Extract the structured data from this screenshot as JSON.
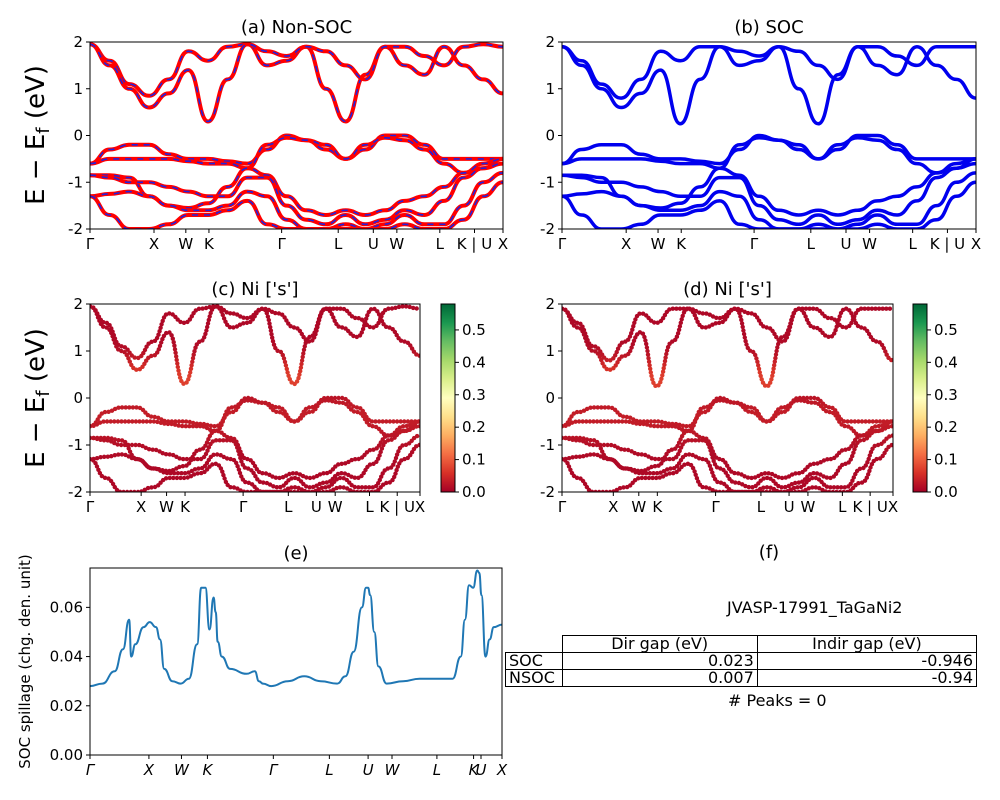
{
  "chart_data": [
    {
      "panel": "a",
      "type": "line",
      "title": "(a) Non-SOC",
      "ylabel": "E − E_f (eV)",
      "ylim": [
        -2,
        2
      ],
      "yticks": [
        2,
        1,
        0,
        -1,
        -2
      ],
      "kpath_labels": [
        "Γ",
        "X",
        "W",
        "K",
        "Γ",
        "L",
        "U",
        "W",
        "L",
        "K | U",
        "X"
      ],
      "kpath_positions": [
        0,
        0.155,
        0.232,
        0.288,
        0.464,
        0.601,
        0.686,
        0.743,
        0.847,
        0.931,
        1.0
      ],
      "series": [
        {
          "values": [
            1.95,
            1.6,
            1.1,
            0.85,
            1.2,
            1.8,
            1.6,
            1.9,
            1.95,
            1.5,
            1.6,
            1.9,
            1.0,
            0.3,
            1.3,
            1.9,
            1.5,
            1.3,
            1.9,
            1.5,
            1.2,
            0.9
          ]
        },
        {
          "values": [
            1.95,
            1.5,
            1.0,
            0.6,
            0.9,
            1.4,
            0.3,
            1.2,
            1.95,
            1.8,
            1.7,
            1.9,
            1.8,
            1.5,
            1.2,
            1.9,
            1.9,
            1.7,
            1.5,
            1.9,
            1.95,
            1.9
          ]
        },
        {
          "values": [
            -0.6,
            -0.3,
            -0.2,
            -0.2,
            -0.4,
            -0.5,
            -0.5,
            -0.55,
            -0.6,
            -0.3,
            0.0,
            -0.1,
            -0.3,
            -0.5,
            -0.3,
            0.0,
            0.0,
            -0.2,
            -0.5,
            -0.5,
            -0.5,
            -0.5
          ]
        },
        {
          "values": [
            -0.6,
            -0.5,
            -0.5,
            -0.5,
            -0.5,
            -0.55,
            -0.6,
            -0.6,
            -0.7,
            -0.2,
            -0.05,
            -0.1,
            -0.2,
            -0.5,
            -0.2,
            -0.05,
            -0.1,
            -0.3,
            -0.6,
            -0.8,
            -0.7,
            -0.5
          ]
        },
        {
          "values": [
            -0.85,
            -0.85,
            -0.9,
            -1.3,
            -1.5,
            -1.55,
            -1.45,
            -1.1,
            -0.7,
            -0.85,
            -1.3,
            -1.6,
            -1.7,
            -1.6,
            -1.7,
            -1.6,
            -1.4,
            -1.3,
            -1.1,
            -0.8,
            -0.6,
            -0.5
          ]
        },
        {
          "values": [
            -0.85,
            -0.9,
            -1.0,
            -1.0,
            -1.1,
            -1.2,
            -1.3,
            -1.3,
            -0.9,
            -0.9,
            -1.5,
            -1.8,
            -1.9,
            -1.7,
            -1.9,
            -1.8,
            -1.6,
            -1.7,
            -1.4,
            -0.9,
            -0.7,
            -0.6
          ]
        },
        {
          "values": [
            -1.3,
            -1.25,
            -1.2,
            -1.3,
            -1.5,
            -1.6,
            -1.6,
            -1.5,
            -1.2,
            -1.3,
            -1.8,
            -2.0,
            -2.0,
            -1.9,
            -2.0,
            -1.9,
            -1.7,
            -1.9,
            -1.9,
            -1.5,
            -1.0,
            -0.8
          ]
        },
        {
          "values": [
            -1.3,
            -1.7,
            -2.0,
            -2.0,
            -1.9,
            -1.7,
            -1.7,
            -1.6,
            -1.4,
            -1.9,
            -2.0,
            -2.0,
            -2.0,
            -2.0,
            -2.0,
            -2.0,
            -1.9,
            -2.0,
            -2.0,
            -1.8,
            -1.3,
            -1.0
          ]
        }
      ]
    },
    {
      "panel": "b",
      "type": "line",
      "title": "(b) SOC",
      "ylim": [
        -2,
        2
      ],
      "yticks": [
        2,
        1,
        0,
        -1,
        -2
      ],
      "kpath_labels": [
        "Γ",
        "X",
        "W",
        "K",
        "Γ",
        "L",
        "U",
        "W",
        "L",
        "K | U",
        "X"
      ],
      "kpath_positions": [
        0,
        0.155,
        0.232,
        0.288,
        0.464,
        0.601,
        0.686,
        0.743,
        0.847,
        0.931,
        1.0
      ],
      "series": [
        {
          "values": [
            1.9,
            1.6,
            1.1,
            0.8,
            1.2,
            1.8,
            1.6,
            1.9,
            1.9,
            1.5,
            1.6,
            1.9,
            1.0,
            0.25,
            1.3,
            1.9,
            1.5,
            1.3,
            1.9,
            1.5,
            1.2,
            0.8
          ]
        },
        {
          "values": [
            1.9,
            1.5,
            1.0,
            0.6,
            0.9,
            1.4,
            0.25,
            1.2,
            1.9,
            1.8,
            1.7,
            1.9,
            1.8,
            1.5,
            1.2,
            1.9,
            1.9,
            1.7,
            1.5,
            1.9,
            1.9,
            1.9
          ]
        },
        {
          "values": [
            -0.6,
            -0.3,
            -0.2,
            -0.2,
            -0.4,
            -0.5,
            -0.5,
            -0.55,
            -0.6,
            -0.3,
            0.0,
            -0.1,
            -0.3,
            -0.5,
            -0.3,
            0.0,
            0.0,
            -0.2,
            -0.5,
            -0.5,
            -0.5,
            -0.5
          ]
        },
        {
          "values": [
            -0.6,
            -0.5,
            -0.5,
            -0.5,
            -0.5,
            -0.55,
            -0.6,
            -0.6,
            -0.7,
            -0.2,
            -0.05,
            -0.1,
            -0.2,
            -0.5,
            -0.2,
            -0.05,
            -0.1,
            -0.3,
            -0.6,
            -0.8,
            -0.7,
            -0.5
          ]
        },
        {
          "values": [
            -0.85,
            -0.85,
            -0.9,
            -1.3,
            -1.5,
            -1.55,
            -1.45,
            -1.1,
            -0.7,
            -0.85,
            -1.3,
            -1.6,
            -1.7,
            -1.6,
            -1.7,
            -1.6,
            -1.4,
            -1.3,
            -1.1,
            -0.8,
            -0.6,
            -0.5
          ]
        },
        {
          "values": [
            -0.85,
            -0.9,
            -1.0,
            -1.0,
            -1.1,
            -1.2,
            -1.3,
            -1.3,
            -0.9,
            -0.9,
            -1.5,
            -1.8,
            -1.9,
            -1.7,
            -1.9,
            -1.8,
            -1.6,
            -1.7,
            -1.4,
            -0.9,
            -0.7,
            -0.6
          ]
        },
        {
          "values": [
            -1.3,
            -1.25,
            -1.2,
            -1.3,
            -1.5,
            -1.6,
            -1.6,
            -1.5,
            -1.2,
            -1.3,
            -1.8,
            -2.0,
            -2.0,
            -1.9,
            -2.0,
            -1.9,
            -1.7,
            -1.9,
            -1.9,
            -1.5,
            -1.0,
            -0.8
          ]
        },
        {
          "values": [
            -1.3,
            -1.7,
            -2.0,
            -2.0,
            -1.9,
            -1.7,
            -1.7,
            -1.6,
            -1.4,
            -1.9,
            -2.0,
            -2.0,
            -2.0,
            -2.0,
            -2.0,
            -2.0,
            -1.9,
            -2.0,
            -2.0,
            -1.8,
            -1.3,
            -1.0
          ]
        }
      ]
    },
    {
      "panel": "c",
      "type": "scatter",
      "title": "(c)  Ni ['s']",
      "ylabel": "E − E_f (eV)",
      "ylim": [
        -2,
        2
      ],
      "yticks": [
        2,
        1,
        0,
        -1,
        -2
      ],
      "kpath_labels": [
        "Γ",
        "X",
        "W",
        "K",
        "Γ",
        "L",
        "U",
        "W",
        "L",
        "K | U",
        "X"
      ],
      "kpath_positions": [
        0,
        0.155,
        0.232,
        0.288,
        0.464,
        0.601,
        0.686,
        0.743,
        0.847,
        0.931,
        1.0
      ],
      "colorbar": {
        "min": 0.0,
        "max": 0.58,
        "ticks": [
          "0.5",
          "0.4",
          "0.3",
          "0.2",
          "0.1",
          "0.0"
        ],
        "colormap": "RdYlGn"
      }
    },
    {
      "panel": "d",
      "type": "scatter",
      "title": "(d) Ni ['s']",
      "ylim": [
        -2,
        2
      ],
      "yticks": [
        2,
        1,
        0,
        -1,
        -2
      ],
      "kpath_labels": [
        "Γ",
        "X",
        "W",
        "K",
        "Γ",
        "L",
        "U",
        "W",
        "L",
        "K | U",
        "X"
      ],
      "kpath_positions": [
        0,
        0.155,
        0.232,
        0.288,
        0.464,
        0.601,
        0.686,
        0.743,
        0.847,
        0.931,
        1.0
      ],
      "colorbar": {
        "min": 0.0,
        "max": 0.58,
        "ticks": [
          "0.5",
          "0.4",
          "0.3",
          "0.2",
          "0.1",
          "0.0"
        ],
        "colormap": "RdYlGn"
      }
    },
    {
      "panel": "e",
      "type": "line",
      "title": "(e)",
      "ylabel": "SOC spillage (chg. den. unit)",
      "ylim": [
        0.0,
        0.076
      ],
      "yticks": [
        "0.06",
        "0.04",
        "0.02",
        "0.00"
      ],
      "kpath_labels": [
        "Γ",
        "X",
        "W",
        "K",
        "Γ",
        "L",
        "U",
        "W",
        "L",
        "K",
        "U",
        "X"
      ],
      "kpath_positions": [
        0,
        0.143,
        0.222,
        0.285,
        0.445,
        0.581,
        0.675,
        0.733,
        0.842,
        0.931,
        0.949,
        1.0
      ],
      "x": [
        0,
        0.03,
        0.06,
        0.08,
        0.095,
        0.1,
        0.11,
        0.13,
        0.145,
        0.16,
        0.17,
        0.18,
        0.2,
        0.22,
        0.24,
        0.26,
        0.27,
        0.28,
        0.29,
        0.3,
        0.305,
        0.31,
        0.32,
        0.34,
        0.38,
        0.4,
        0.41,
        0.42,
        0.44,
        0.48,
        0.52,
        0.56,
        0.6,
        0.62,
        0.64,
        0.66,
        0.67,
        0.675,
        0.68,
        0.69,
        0.7,
        0.72,
        0.76,
        0.8,
        0.84,
        0.88,
        0.9,
        0.91,
        0.92,
        0.93,
        0.94,
        0.945,
        0.95,
        0.96,
        0.97,
        0.98,
        1.0
      ],
      "values": [
        0.028,
        0.029,
        0.034,
        0.043,
        0.055,
        0.04,
        0.045,
        0.052,
        0.054,
        0.052,
        0.047,
        0.035,
        0.03,
        0.029,
        0.031,
        0.045,
        0.068,
        0.068,
        0.051,
        0.064,
        0.058,
        0.046,
        0.04,
        0.035,
        0.033,
        0.034,
        0.03,
        0.029,
        0.028,
        0.03,
        0.032,
        0.03,
        0.029,
        0.032,
        0.042,
        0.06,
        0.068,
        0.068,
        0.065,
        0.05,
        0.036,
        0.029,
        0.03,
        0.031,
        0.031,
        0.031,
        0.04,
        0.055,
        0.069,
        0.068,
        0.075,
        0.074,
        0.065,
        0.04,
        0.047,
        0.052,
        0.053
      ]
    }
  ],
  "panel_f": {
    "title": "(f)",
    "formula_id": "JVASP-17991_TaGaNi2",
    "table": {
      "headers": [
        "Dir gap (eV)",
        "Indir gap (eV)"
      ],
      "rows": [
        {
          "label": "SOC",
          "dir": "0.023",
          "indir": "-0.946"
        },
        {
          "label": "NSOC",
          "dir": "0.007",
          "indir": "-0.94"
        }
      ]
    },
    "peaks_text": "# Peaks = 0"
  },
  "colors": {
    "nonsoc_solid": "#ff0000",
    "nonsoc_dash": "#2222dd",
    "soc": "#0000ee",
    "spillage": "#1f77b4"
  }
}
